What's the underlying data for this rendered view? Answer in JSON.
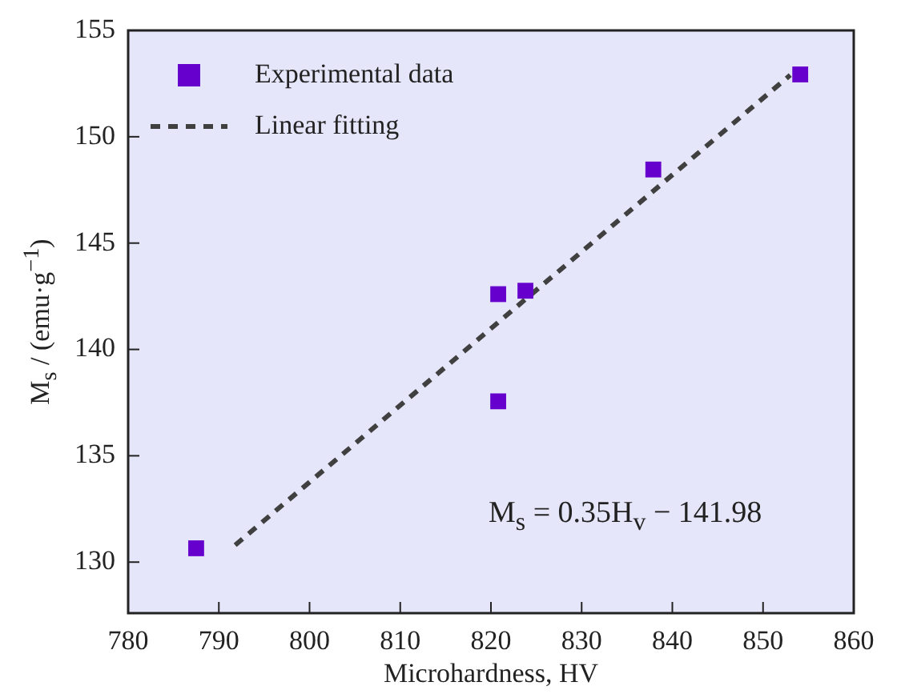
{
  "chart_data": {
    "type": "scatter",
    "xlabel": "Microhardness, HV",
    "ylabel": "M$_{s}$ / (emu·g$^{−1}$)",
    "xlim": [
      780,
      860
    ],
    "xticks": [
      780,
      790,
      800,
      810,
      820,
      830,
      840,
      850,
      860
    ],
    "ylim": [
      127.6,
      155
    ],
    "yticks": [
      130,
      135,
      140,
      145,
      150,
      155
    ],
    "grid": false,
    "legend": "top left",
    "marker": "square",
    "annotations": [
      "M$_{s}$ = 0.35H$_{v}$ − 141.98"
    ],
    "series": [
      {
        "name": "Experimental data",
        "type": "scatter",
        "color": "#6600cc",
        "x": [
          787.5,
          820.8,
          823.8,
          820.8,
          837.9,
          854.1
        ],
        "values": [
          130.65,
          142.6,
          142.76,
          137.56,
          148.46,
          152.93
        ]
      },
      {
        "name": "Linear fitting",
        "type": "line",
        "color": "#404040",
        "line_style": "dashed",
        "marker": "none",
        "x": [
          791.8,
          853
        ],
        "values": [
          130.8,
          152.9
        ]
      }
    ]
  }
}
